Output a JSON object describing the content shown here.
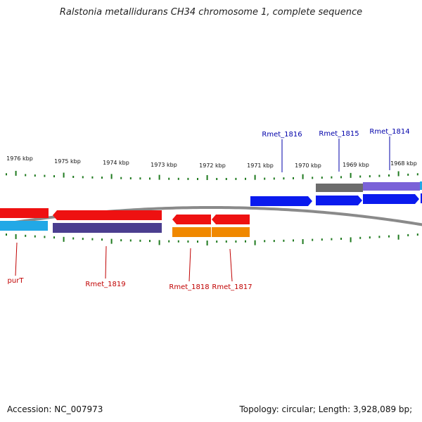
{
  "title": "Ralstonia metallidurans CH34 chromosome 1, complete sequence",
  "accession": {
    "label": "Accession:",
    "value": "NC_007973"
  },
  "topology": {
    "label": "Topology:",
    "value": "circular"
  },
  "length": {
    "label": "Length:",
    "value": "3,928,089 bp"
  },
  "genes": {
    "forward": [
      {
        "name": "Rmet_1816",
        "color": "blue"
      },
      {
        "name": "Rmet_1815",
        "color": "blue"
      },
      {
        "name": "Rmet_1814",
        "color": "blue"
      }
    ],
    "reverse": [
      {
        "name": "purT",
        "color": "red"
      },
      {
        "name": "Rmet_1819",
        "color": "red"
      },
      {
        "name": "Rmet_1818",
        "color": "red"
      },
      {
        "name": "Rmet_1817",
        "color": "red"
      }
    ]
  },
  "colors": {
    "backbone": "#8a8a8a",
    "tick": "#1f7a1f",
    "label_forward": "#0000aa",
    "label_reverse": "#c00000",
    "red": "#ee1111",
    "orange": "#f08800",
    "blue": "#0a1aee",
    "navy": "#4b3e8f",
    "cyan": "#22a8e6",
    "purple": "#7a62d8",
    "gray": "#6c6c6c"
  },
  "ruler": {
    "unit": "kbp",
    "labels": [
      "1976 kbp",
      "1975 kbp",
      "1974 kbp",
      "1973 kbp",
      "1972 kbp",
      "1971 kbp",
      "1970 kbp",
      "1969 kbp",
      "1968 kbp"
    ]
  }
}
